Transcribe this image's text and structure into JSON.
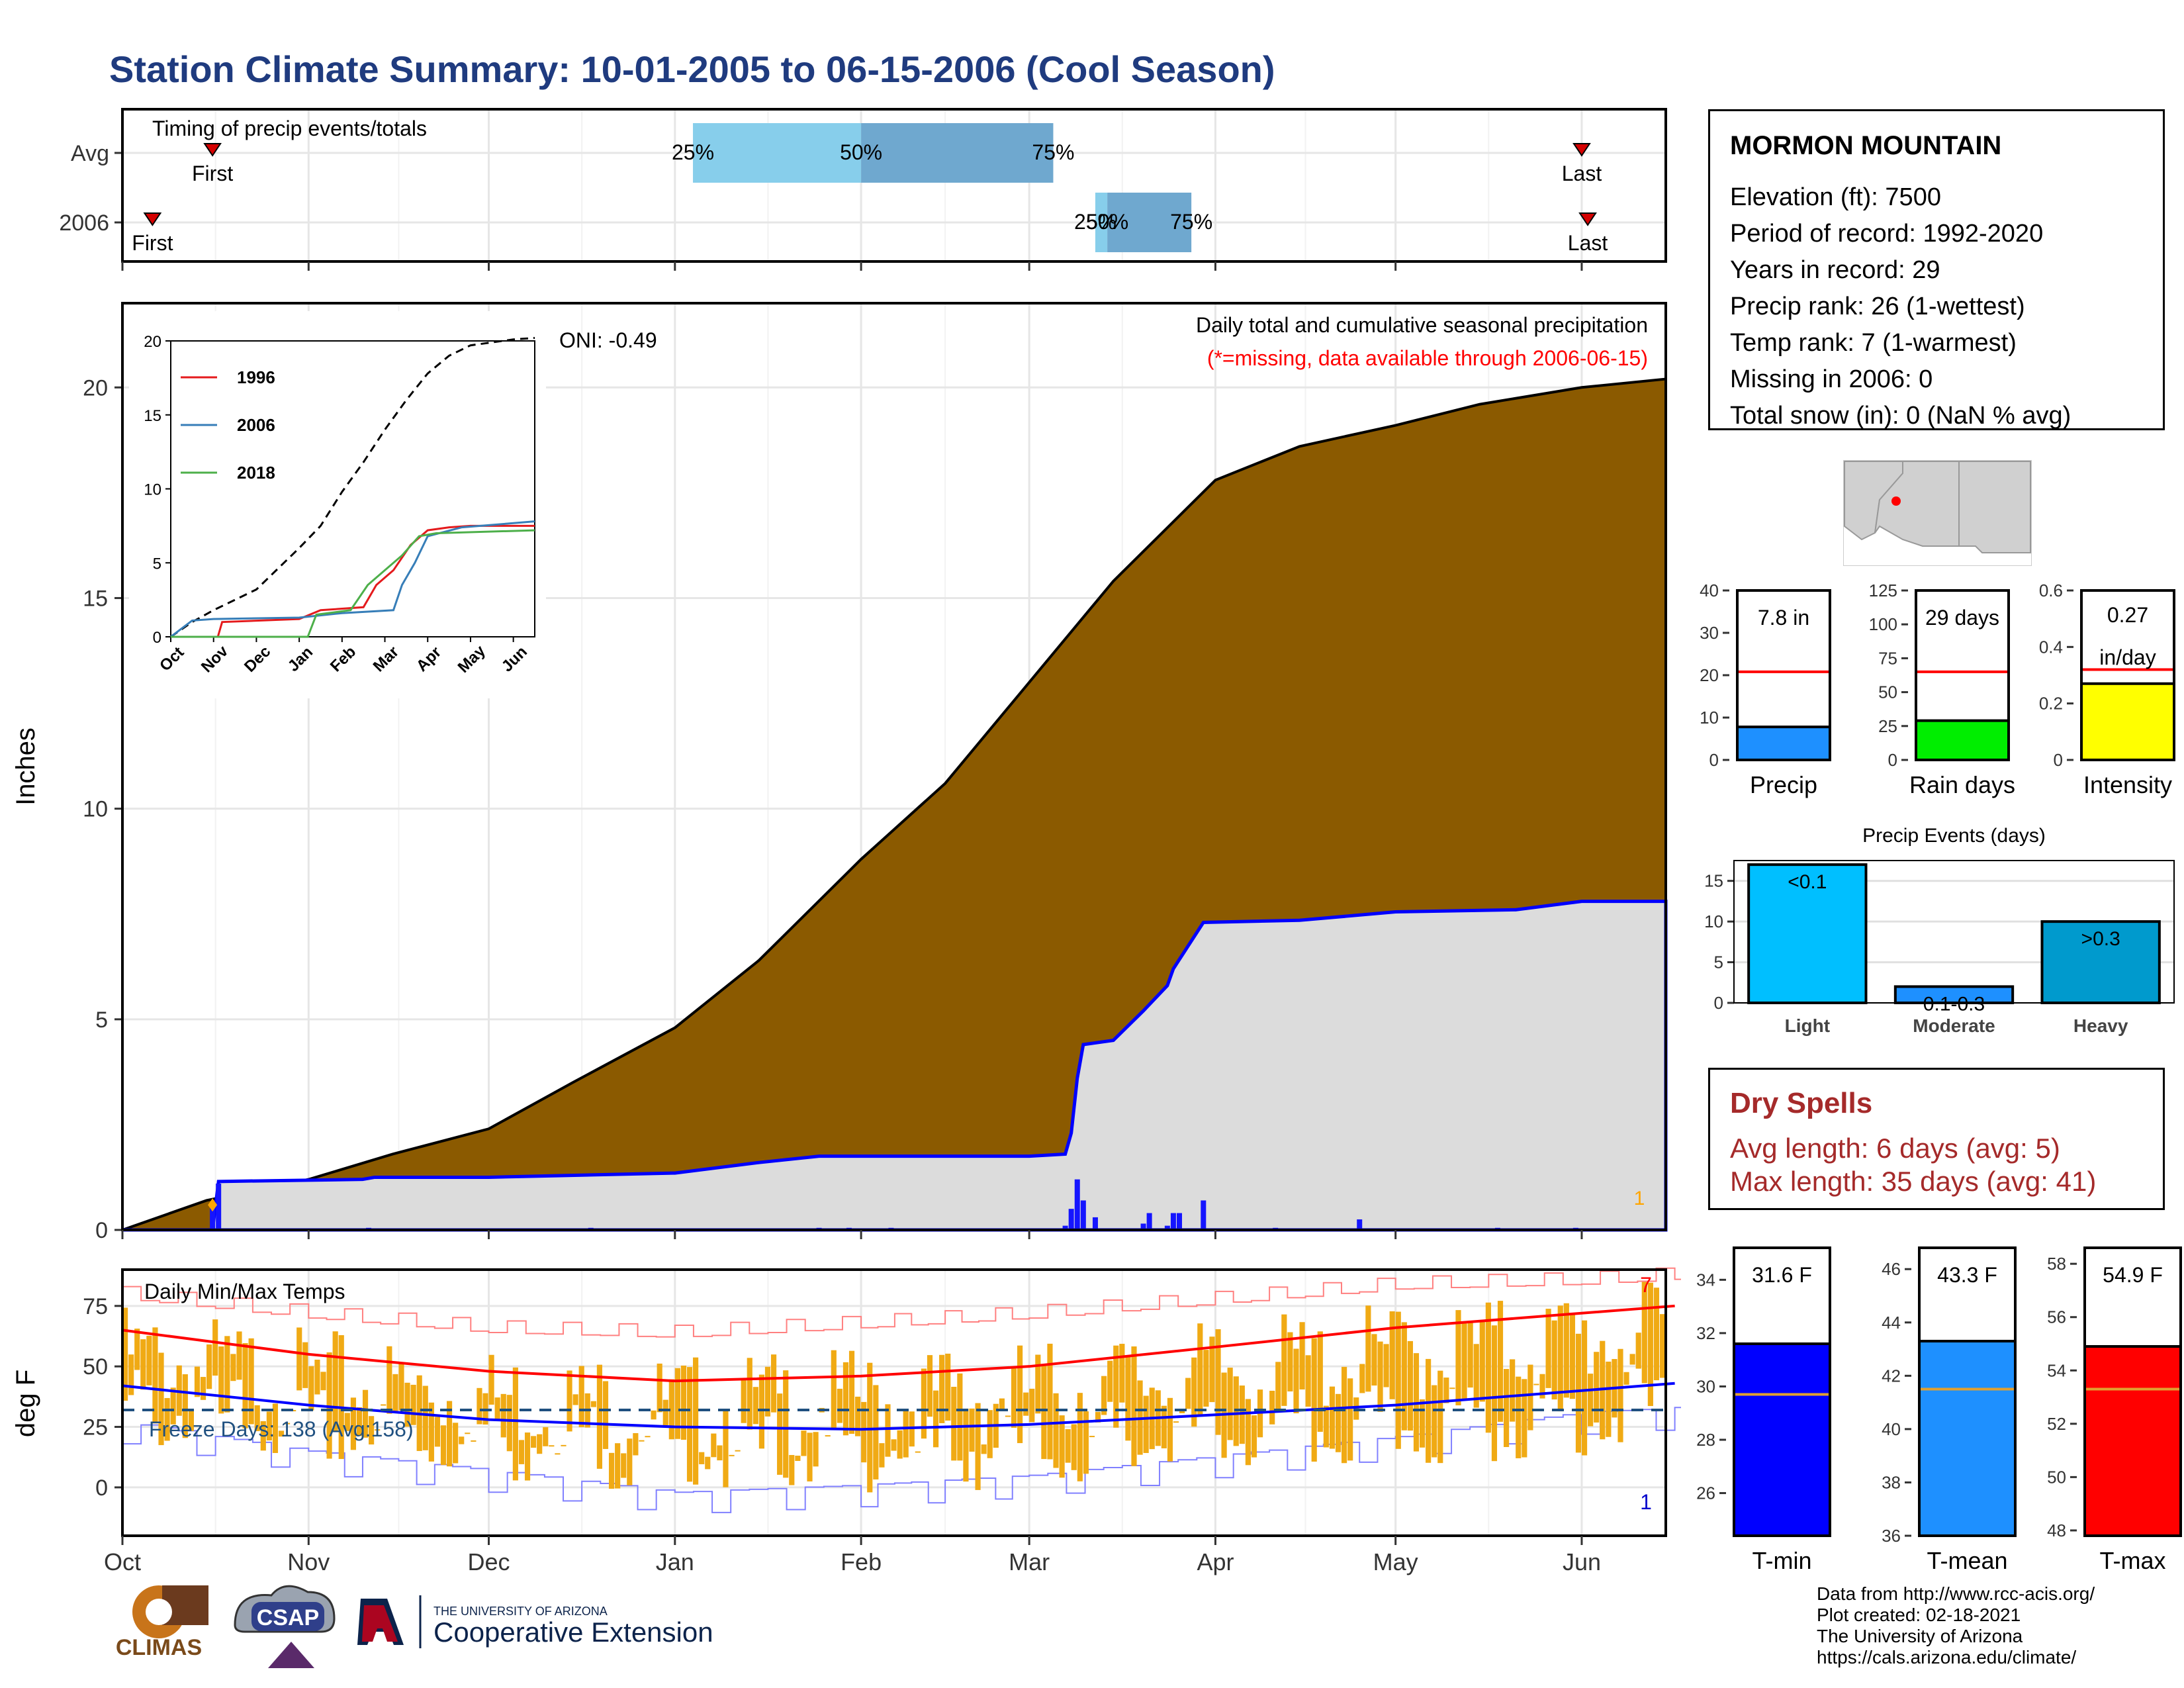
{
  "title": "Station Climate Summary: 10-01-2005 to 06-15-2006 (Cool Season)",
  "colors": {
    "title": "#1f3b7f",
    "cumulative_avg": "#8b5a00",
    "season_precip_area": "#dcdcdc",
    "season_precip_line": "#0000ff",
    "daily_bars": "#1515ff",
    "temp_range_bars": "#f0aa14",
    "avg_max_line": "#ff0000",
    "avg_min_line": "#0000ff",
    "freeze_line": "#1f5080",
    "timing_light": "#87ceeb",
    "timing_dark": "#6fa8cf",
    "dry_spells": "#a52a2a"
  },
  "station": {
    "name": "MORMON MOUNTAIN",
    "lines": [
      "Elevation (ft): 7500",
      "Period of record: 1992-2020",
      "Years in record: 29",
      "Precip rank: 26 (1-wettest)",
      "Temp rank: 7 (1-warmest)",
      "Missing in 2006: 0",
      "Total snow (in): 0 (NaN % avg)"
    ]
  },
  "dry_spells": {
    "title": "Dry Spells",
    "avg_length": "Avg length: 6 days (avg: 5)",
    "max_length": "Max length: 35 days (avg: 41)"
  },
  "credits": [
    "Data from http://www.rcc-acis.org/",
    "Plot created: 02-18-2021",
    "The University of Arizona",
    "https://cals.arizona.edu/climate/"
  ],
  "logos": {
    "climas": "CLIMAS",
    "csap": "CSAP",
    "univ": "THE UNIVERSITY OF ARIZONA",
    "coop": "Cooperative Extension"
  },
  "chart_data": [
    {
      "id": "timing",
      "type": "bar",
      "title": "Timing of precip events/totals",
      "categories": [
        "Avg",
        "2006"
      ],
      "quantile_labels": [
        "25%",
        "50%",
        "75%"
      ],
      "first_label": "First",
      "last_label": "Last",
      "rows": [
        {
          "name": "Avg",
          "first": "2005-10-16",
          "q25": "2006-01-04",
          "q50": "2006-02-01",
          "q75": "2006-03-05",
          "last": "2006-06-01"
        },
        {
          "name": "2006",
          "first": "2005-10-06",
          "q25": "2006-03-12",
          "q50": "2006-03-14",
          "q75": "2006-03-28",
          "last": "2006-06-02"
        }
      ],
      "x_range": [
        "2005-10-01",
        "2006-06-15"
      ]
    },
    {
      "id": "precip",
      "type": "area",
      "title": "Daily total and cumulative seasonal precipitation",
      "subtitle": "(*=missing, data available through 2006-06-15)",
      "ylabel": "Inches",
      "ylim": [
        0,
        22
      ],
      "yticks": [
        0,
        5,
        10,
        15,
        20
      ],
      "xticks": [
        "Oct",
        "Nov",
        "Dec",
        "Jan",
        "Feb",
        "Mar",
        "Apr",
        "May",
        "Jun"
      ],
      "xtick_dates": [
        "2005-10-01",
        "2005-11-01",
        "2005-12-01",
        "2006-01-01",
        "2006-02-01",
        "2006-03-01",
        "2006-04-01",
        "2006-05-01",
        "2006-06-01"
      ],
      "oni": "ONI: -0.49",
      "missing_count": "1",
      "avg_cumulative": [
        [
          "2005-10-01",
          0
        ],
        [
          "2005-10-15",
          0.7
        ],
        [
          "2005-11-01",
          1.2
        ],
        [
          "2005-11-15",
          1.8
        ],
        [
          "2005-12-01",
          2.4
        ],
        [
          "2005-12-15",
          3.5
        ],
        [
          "2006-01-01",
          4.8
        ],
        [
          "2006-01-15",
          6.4
        ],
        [
          "2006-02-01",
          8.8
        ],
        [
          "2006-02-15",
          10.6
        ],
        [
          "2006-03-01",
          13.0
        ],
        [
          "2006-03-15",
          15.4
        ],
        [
          "2006-04-01",
          17.8
        ],
        [
          "2006-04-15",
          18.6
        ],
        [
          "2006-05-01",
          19.1
        ],
        [
          "2006-05-15",
          19.6
        ],
        [
          "2006-06-01",
          20.0
        ],
        [
          "2006-06-15",
          20.2
        ]
      ],
      "season_cumulative": [
        [
          "2005-10-01",
          0
        ],
        [
          "2005-10-16",
          0
        ],
        [
          "2005-10-17",
          1.15
        ],
        [
          "2005-11-10",
          1.2
        ],
        [
          "2005-11-12",
          1.25
        ],
        [
          "2005-12-01",
          1.25
        ],
        [
          "2006-01-01",
          1.35
        ],
        [
          "2006-01-15",
          1.6
        ],
        [
          "2006-01-25",
          1.75
        ],
        [
          "2006-03-01",
          1.75
        ],
        [
          "2006-03-07",
          1.8
        ],
        [
          "2006-03-08",
          2.3
        ],
        [
          "2006-03-09",
          3.6
        ],
        [
          "2006-03-10",
          4.4
        ],
        [
          "2006-03-15",
          4.5
        ],
        [
          "2006-03-20",
          5.2
        ],
        [
          "2006-03-24",
          5.8
        ],
        [
          "2006-03-25",
          6.2
        ],
        [
          "2006-03-30",
          7.3
        ],
        [
          "2006-04-15",
          7.35
        ],
        [
          "2006-05-01",
          7.55
        ],
        [
          "2006-05-21",
          7.6
        ],
        [
          "2006-06-01",
          7.8
        ],
        [
          "2006-06-15",
          7.8
        ]
      ],
      "daily_bars": [
        [
          "2005-10-16",
          0.6
        ],
        [
          "2005-10-17",
          1.1
        ],
        [
          "2005-11-11",
          0.05
        ],
        [
          "2005-12-18",
          0.05
        ],
        [
          "2006-01-25",
          0.05
        ],
        [
          "2006-01-30",
          0.05
        ],
        [
          "2006-02-06",
          0.05
        ],
        [
          "2006-03-07",
          0.1
        ],
        [
          "2006-03-08",
          0.5
        ],
        [
          "2006-03-09",
          1.2
        ],
        [
          "2006-03-10",
          0.7
        ],
        [
          "2006-03-12",
          0.3
        ],
        [
          "2006-03-20",
          0.15
        ],
        [
          "2006-03-21",
          0.4
        ],
        [
          "2006-03-24",
          0.1
        ],
        [
          "2006-03-25",
          0.4
        ],
        [
          "2006-03-26",
          0.4
        ],
        [
          "2006-03-30",
          0.7
        ],
        [
          "2006-04-11",
          0.05
        ],
        [
          "2006-04-25",
          0.25
        ],
        [
          "2006-05-18",
          0.05
        ],
        [
          "2006-05-31",
          0.05
        ]
      ],
      "inset": {
        "type": "line",
        "xticks": [
          "Oct",
          "Nov",
          "Dec",
          "Jan",
          "Feb",
          "Mar",
          "Apr",
          "May",
          "Jun"
        ],
        "yticks": [
          0,
          5,
          10,
          15,
          20
        ],
        "ylim": [
          0,
          20
        ],
        "series": [
          {
            "name": "1996",
            "color": "#e41a1c",
            "values": [
              [
                0,
                0
              ],
              [
                1.1,
                0
              ],
              [
                1.2,
                1.0
              ],
              [
                3.0,
                1.2
              ],
              [
                3.5,
                1.8
              ],
              [
                4.5,
                2.0
              ],
              [
                4.8,
                3.5
              ],
              [
                5.2,
                4.5
              ],
              [
                5.6,
                6.2
              ],
              [
                6.0,
                7.2
              ],
              [
                6.5,
                7.4
              ],
              [
                7.0,
                7.5
              ],
              [
                8.5,
                7.5
              ]
            ]
          },
          {
            "name": "2006",
            "color": "#377eb8",
            "values": [
              [
                0,
                0
              ],
              [
                0.5,
                1.1
              ],
              [
                1.0,
                1.2
              ],
              [
                3.0,
                1.3
              ],
              [
                4.0,
                1.6
              ],
              [
                5.2,
                1.8
              ],
              [
                5.4,
                3.5
              ],
              [
                5.7,
                5.0
              ],
              [
                6.0,
                6.8
              ],
              [
                6.8,
                7.4
              ],
              [
                8.5,
                7.8
              ]
            ]
          },
          {
            "name": "2018",
            "color": "#4daf4a",
            "values": [
              [
                0,
                0
              ],
              [
                3.2,
                0
              ],
              [
                3.4,
                1.5
              ],
              [
                4.2,
                1.8
              ],
              [
                4.6,
                3.5
              ],
              [
                5.0,
                4.5
              ],
              [
                5.4,
                5.5
              ],
              [
                5.8,
                6.8
              ],
              [
                6.2,
                7.0
              ],
              [
                8.5,
                7.2
              ]
            ]
          }
        ],
        "avg_dashed": [
          [
            0,
            0
          ],
          [
            0.5,
            1.0
          ],
          [
            1.0,
            1.8
          ],
          [
            2.0,
            3.2
          ],
          [
            3.0,
            6.0
          ],
          [
            3.5,
            7.5
          ],
          [
            4.0,
            9.8
          ],
          [
            4.5,
            11.8
          ],
          [
            5.0,
            14.0
          ],
          [
            5.5,
            16.0
          ],
          [
            6.0,
            17.8
          ],
          [
            6.5,
            19.0
          ],
          [
            7.0,
            19.7
          ],
          [
            8.0,
            20.1
          ],
          [
            8.5,
            20.2
          ]
        ]
      }
    },
    {
      "id": "temps",
      "type": "bar",
      "title": "Daily Min/Max Temps",
      "ylabel": "deg F",
      "ylim": [
        -20,
        90
      ],
      "yticks": [
        0,
        25,
        50,
        75
      ],
      "freeze_line": 32,
      "freeze_label": "Freeze Days: 138 (Avg:158)",
      "record_high_count": "7",
      "record_low_count": "1",
      "xticks": [
        "Oct",
        "Nov",
        "Dec",
        "Jan",
        "Feb",
        "Mar",
        "Apr",
        "May",
        "Jun"
      ],
      "avg_max": [
        [
          0,
          65
        ],
        [
          1,
          55
        ],
        [
          2,
          48
        ],
        [
          3,
          44
        ],
        [
          4,
          46
        ],
        [
          5,
          50
        ],
        [
          6,
          58
        ],
        [
          7,
          66
        ],
        [
          8,
          72
        ],
        [
          8.5,
          75
        ]
      ],
      "avg_min": [
        [
          0,
          42
        ],
        [
          1,
          34
        ],
        [
          2,
          28
        ],
        [
          3,
          25
        ],
        [
          4,
          24
        ],
        [
          5,
          26
        ],
        [
          6,
          30
        ],
        [
          7,
          34
        ],
        [
          8,
          40
        ],
        [
          8.5,
          43
        ]
      ],
      "record_max": [
        [
          0,
          80
        ],
        [
          1,
          72
        ],
        [
          2,
          66
        ],
        [
          3,
          64
        ],
        [
          4,
          68
        ],
        [
          5,
          72
        ],
        [
          6,
          78
        ],
        [
          7,
          84
        ],
        [
          8,
          86
        ],
        [
          8.5,
          88
        ]
      ],
      "record_min": [
        [
          0,
          24
        ],
        [
          1,
          12
        ],
        [
          2,
          4
        ],
        [
          3,
          -5
        ],
        [
          4,
          -2
        ],
        [
          5,
          2
        ],
        [
          6,
          10
        ],
        [
          7,
          18
        ],
        [
          8,
          28
        ],
        [
          8.5,
          30
        ]
      ]
    },
    {
      "id": "season-totals",
      "type": "bar",
      "panels": [
        {
          "name": "Precip",
          "value": 7.8,
          "label": "7.8 in",
          "avg": 20.8,
          "ylim": [
            0,
            40
          ],
          "yticks": [
            0,
            10,
            20,
            30,
            40
          ],
          "color": "#1e90ff"
        },
        {
          "name": "Rain days",
          "value": 29,
          "label": "29 days",
          "avg": 65,
          "ylim": [
            0,
            125
          ],
          "yticks": [
            0,
            25,
            50,
            75,
            100,
            125
          ],
          "color": "#00ee00"
        },
        {
          "name": "Intensity",
          "value": 0.27,
          "label": "0.27 in/day",
          "label_lines": [
            "0.27",
            "in/day"
          ],
          "avg": 0.32,
          "ylim": [
            0,
            0.6
          ],
          "yticks": [
            0.0,
            0.2,
            0.4,
            0.6
          ],
          "color": "#ffff00"
        }
      ]
    },
    {
      "id": "events",
      "type": "bar",
      "title": "Precip Events (days)",
      "categories": [
        "Light",
        "Moderate",
        "Heavy"
      ],
      "values": [
        17,
        2,
        10
      ],
      "bar_labels": [
        "<0.1",
        "0.1-0.3",
        ">0.3"
      ],
      "ylim": [
        0,
        17.5
      ],
      "yticks": [
        0,
        5,
        10,
        15
      ],
      "colors": [
        "#00bfff",
        "#1e90ff",
        "#009acd"
      ]
    },
    {
      "id": "temp-gauges",
      "type": "bar",
      "panels": [
        {
          "name": "T-min",
          "value": 31.6,
          "label": "31.6 F",
          "avg": 29.7,
          "ylim": [
            24.4,
            35.2
          ],
          "yticks": [
            26,
            28,
            30,
            32,
            34
          ],
          "color": "#0000ff"
        },
        {
          "name": "T-mean",
          "value": 43.3,
          "label": "43.3 F",
          "avg": 41.5,
          "ylim": [
            36,
            46.8
          ],
          "yticks": [
            36,
            38,
            40,
            42,
            44,
            46
          ],
          "color": "#1e90ff"
        },
        {
          "name": "T-max",
          "value": 54.9,
          "label": "54.9 F",
          "avg": 53.3,
          "ylim": [
            47.8,
            58.6
          ],
          "yticks": [
            48,
            50,
            52,
            54,
            56,
            58
          ],
          "color": "#ff0000"
        }
      ]
    }
  ]
}
